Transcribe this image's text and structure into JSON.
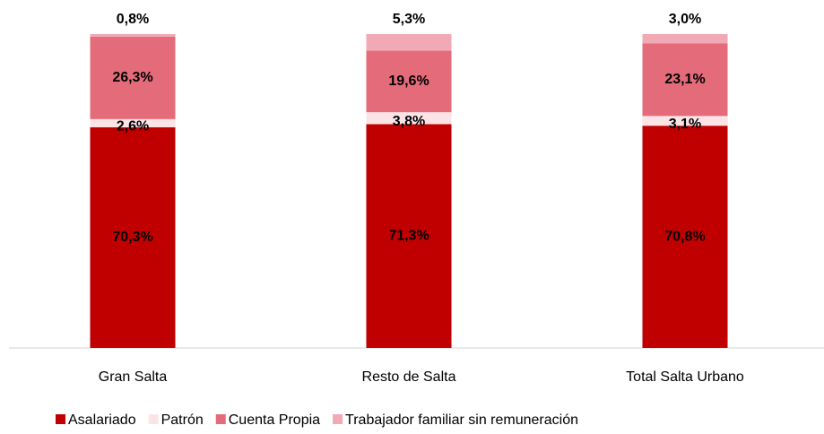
{
  "chart_data": {
    "type": "stacked_bar",
    "categories": [
      "Gran Salta",
      "Resto de Salta",
      "Total Salta Urbano"
    ],
    "series": [
      {
        "name": "Asalariado",
        "color": "#c00000",
        "values": [
          70.3,
          71.3,
          70.8
        ],
        "value_labels": [
          "70,3%",
          "71,3%",
          "70,8%"
        ]
      },
      {
        "name": "Patrón",
        "color": "#fce4e6",
        "values": [
          2.6,
          3.8,
          3.1
        ],
        "value_labels": [
          "2,6%",
          "3,8%",
          "3,1%"
        ]
      },
      {
        "name": "Cuenta Propia",
        "color": "#e46c7a",
        "values": [
          26.3,
          19.6,
          23.1
        ],
        "value_labels": [
          "26,3%",
          "19,6%",
          "23,1%"
        ]
      },
      {
        "name": "Trabajador familiar sin remuneración",
        "color": "#f0a9b5",
        "values": [
          0.8,
          5.3,
          3.0
        ],
        "value_labels": [
          "0,8%",
          "5,3%",
          "3,0%"
        ]
      }
    ],
    "legend": "bottom"
  }
}
